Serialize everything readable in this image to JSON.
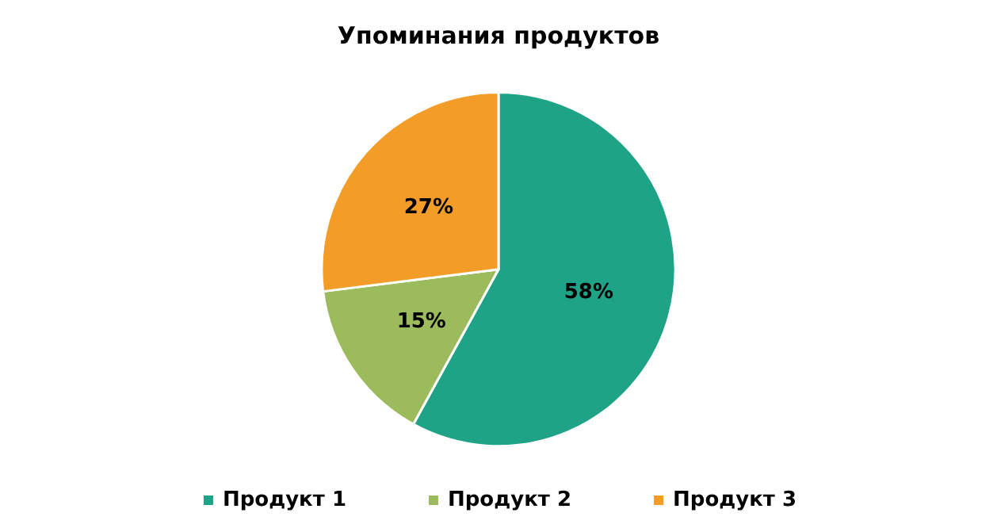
{
  "chart_data": {
    "type": "pie",
    "title": "Упоминания продуктов",
    "categories": [
      "Продукт 1",
      "Продукт 2",
      "Продукт 3"
    ],
    "values": [
      58,
      15,
      27
    ],
    "colors": [
      "#1fa386",
      "#9bbb5c",
      "#f39c27"
    ],
    "value_labels": [
      "58%",
      "15%",
      "27%"
    ],
    "legend": "bottom"
  }
}
